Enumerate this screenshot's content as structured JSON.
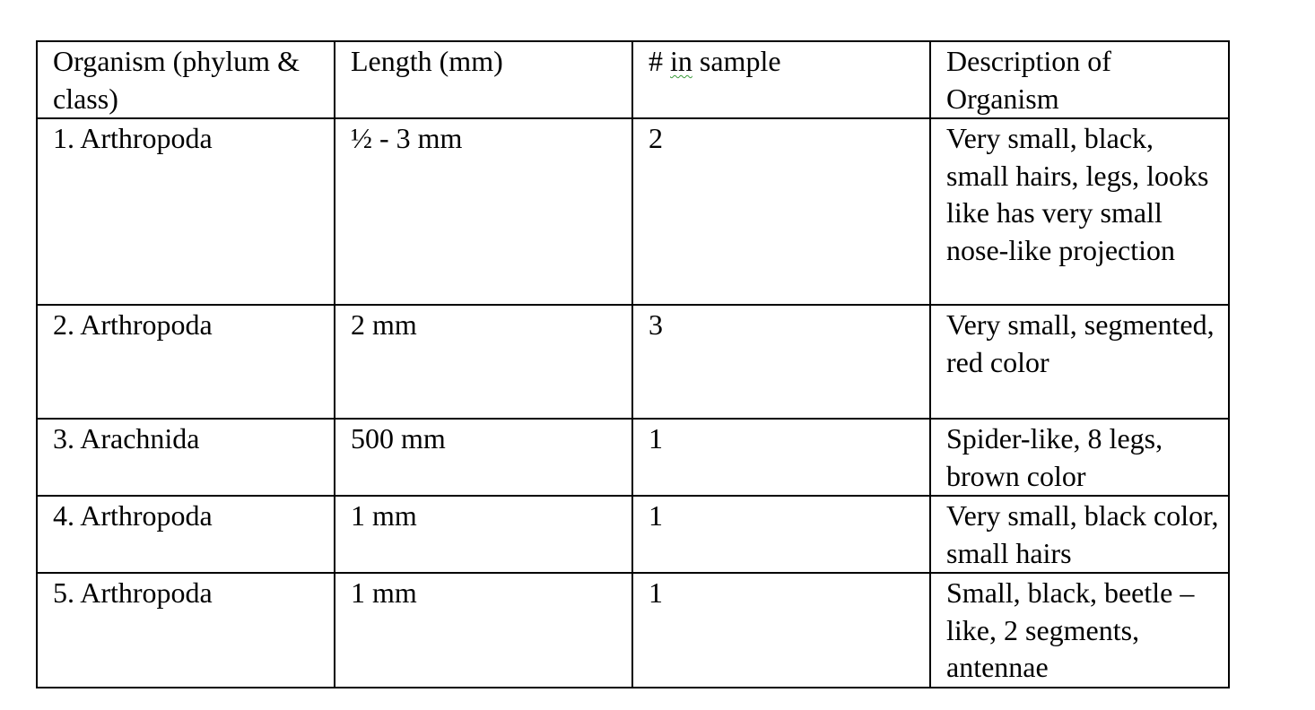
{
  "headers": [
    "Organism (phylum & class)",
    "Length (mm)",
    "# in sample",
    "Description of Organism"
  ],
  "header_parts": {
    "hash": "# ",
    "in": "in",
    "sample": " sample"
  },
  "rows": [
    {
      "organism": "1. Arthropoda",
      "length": "½ - 3 mm",
      "count": "2",
      "description": "Very small, black, small hairs, legs, looks like has very small nose-like projection"
    },
    {
      "organism": "2. Arthropoda",
      "length": "2 mm",
      "count": "3",
      "description": "Very small, segmented, red color"
    },
    {
      "organism": "3. Arachnida",
      "length": "500 mm",
      "count": "1",
      "description": "Spider-like, 8 legs, brown color"
    },
    {
      "organism": "4. Arthropoda",
      "length": "1 mm",
      "count": "1",
      "description": "Very small, black color, small hairs"
    },
    {
      "organism": "5. Arthropoda",
      "length": "1 mm",
      "count": "1",
      "description": "Small, black, beetle –like, 2 segments, antennae"
    }
  ]
}
